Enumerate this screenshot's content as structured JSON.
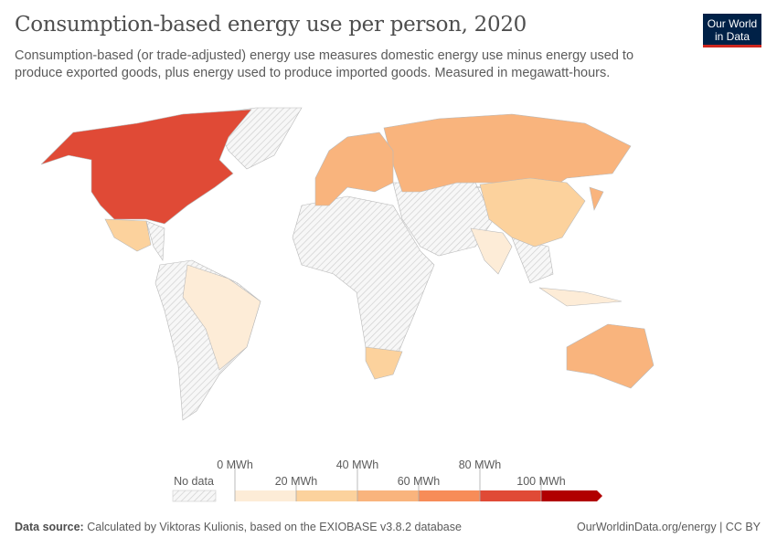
{
  "header": {
    "title": "Consumption-based energy use per person, 2020",
    "subtitle": "Consumption-based (or trade-adjusted) energy use measures domestic energy use minus energy used to produce exported goods, plus energy used to produce imported goods. Measured in megawatt-hours.",
    "logo": "Our World in Data"
  },
  "footer": {
    "source_label": "Data source:",
    "source": "Calculated by Viktoras Kulionis, based on the EXIOBASE v3.8.2 database",
    "link": "OurWorldinData.org/energy | CC BY"
  },
  "chart_data": {
    "type": "choropleth",
    "year": 2020,
    "unit": "MWh",
    "legend": {
      "no_data": "No data",
      "ticks": [
        "0 MWh",
        "20 MWh",
        "40 MWh",
        "60 MWh",
        "80 MWh",
        "100 MWh"
      ],
      "bins": [
        {
          "range": [
            0,
            20
          ],
          "color": "#fdecd7"
        },
        {
          "range": [
            20,
            40
          ],
          "color": "#fcd29d"
        },
        {
          "range": [
            40,
            60
          ],
          "color": "#f9b47d"
        },
        {
          "range": [
            60,
            80
          ],
          "color": "#f78c58"
        },
        {
          "range": [
            80,
            100
          ],
          "color": "#e04a36"
        },
        {
          "range": [
            100,
            null
          ],
          "color": "#b10000"
        }
      ],
      "no_data_color": "#e6e6e6"
    },
    "regions": [
      {
        "name": "North America (USA & Canada)",
        "bin": 4
      },
      {
        "name": "Mexico",
        "bin": 1
      },
      {
        "name": "Brazil",
        "bin": 0
      },
      {
        "name": "Russia",
        "bin": 2
      },
      {
        "name": "China",
        "bin": 1
      },
      {
        "name": "India",
        "bin": 0
      },
      {
        "name": "Indonesia",
        "bin": 0
      },
      {
        "name": "Australia",
        "bin": 2
      },
      {
        "name": "South Africa",
        "bin": 1
      },
      {
        "name": "Europe",
        "bin": 2
      },
      {
        "name": "Japan",
        "bin": 2
      }
    ]
  }
}
